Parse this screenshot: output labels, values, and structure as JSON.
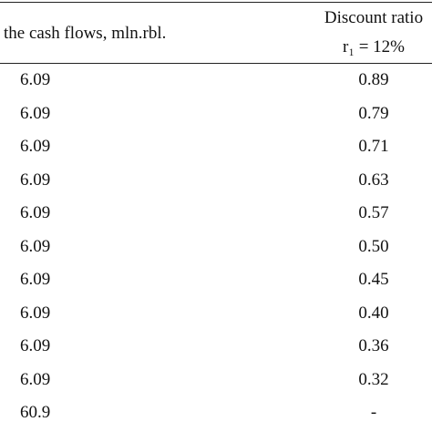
{
  "header": [
    "the cash flows, mln.rbl.",
    "Discount ratio",
    "r₁ = 12%"
  ],
  "rows": [
    [
      "6.09",
      "0.89"
    ],
    [
      "6.09",
      "0.79"
    ],
    [
      "6.09",
      "0.71"
    ],
    [
      "6.09",
      "0.63"
    ],
    [
      "6.09",
      "0.57"
    ],
    [
      "6.09",
      "0.50"
    ],
    [
      "6.09",
      "0.45"
    ],
    [
      "6.09",
      "0.40"
    ],
    [
      "6.09",
      "0.36"
    ],
    [
      "6.09",
      "0.32"
    ],
    [
      "60.9",
      "-"
    ]
  ]
}
